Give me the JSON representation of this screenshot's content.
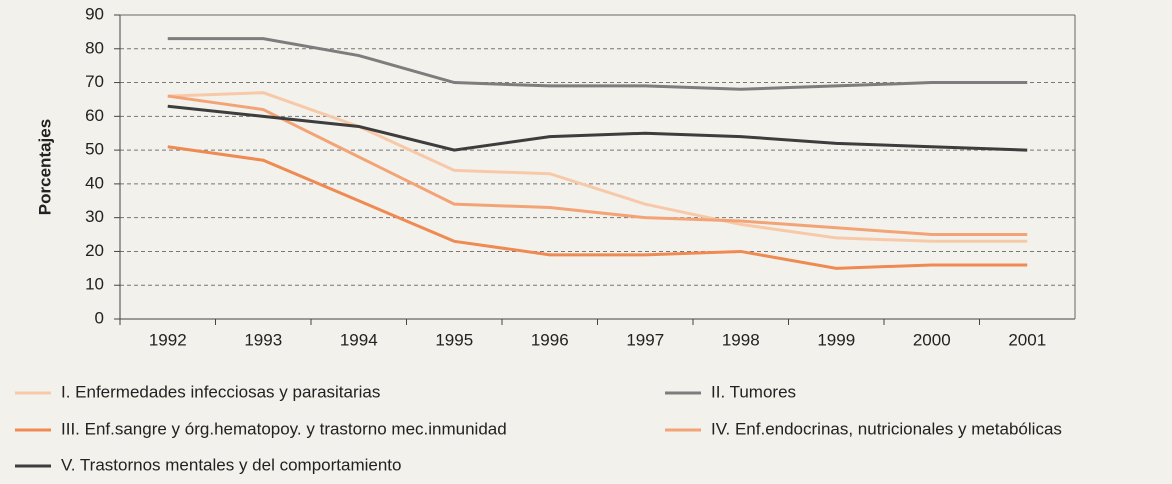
{
  "chart_data": {
    "type": "line",
    "ylabel": "Porcentajes",
    "categories": [
      "1992",
      "1993",
      "1994",
      "1995",
      "1996",
      "1997",
      "1998",
      "1999",
      "2000",
      "2001"
    ],
    "ylim": [
      0,
      90
    ],
    "yticks": [
      0,
      10,
      20,
      30,
      40,
      50,
      60,
      70,
      80,
      90
    ],
    "grid": true,
    "series": [
      {
        "name": "I. Enfermedades infecciosas y parasitarias",
        "color": "#f8c9a9",
        "values": [
          66,
          67,
          57,
          44,
          43,
          34,
          28,
          24,
          23,
          23
        ]
      },
      {
        "name": "II. Tumores",
        "color": "#7d7d7d",
        "values": [
          83,
          83,
          78,
          70,
          69,
          69,
          68,
          69,
          70,
          70
        ]
      },
      {
        "name": "III. Enf.sangre y órg.hematopoy. y trastorno mec.inmunidad",
        "color": "#ef8a52",
        "values": [
          51,
          47,
          35,
          23,
          19,
          19,
          20,
          15,
          16,
          16
        ]
      },
      {
        "name": "IV. Enf.endocrinas, nutricionales y metabólicas",
        "color": "#f3a476",
        "values": [
          66,
          62,
          48,
          34,
          33,
          30,
          29,
          27,
          25,
          25
        ]
      },
      {
        "name": "V. Trastornos mentales y del comportamiento",
        "color": "#3d3d3d",
        "values": [
          63,
          60,
          57,
          50,
          54,
          55,
          54,
          52,
          51,
          50
        ]
      }
    ]
  }
}
